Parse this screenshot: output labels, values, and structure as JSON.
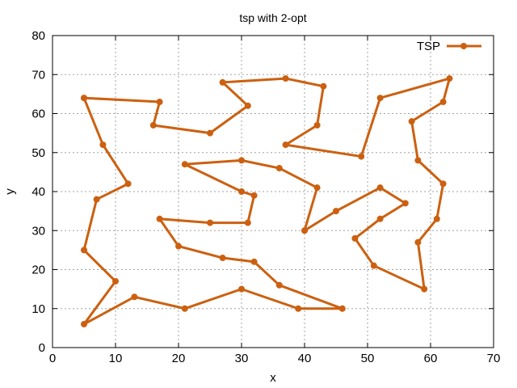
{
  "chart_data": {
    "type": "line",
    "title": "tsp with 2-opt",
    "xlabel": "x",
    "ylabel": "y",
    "xlim": [
      0,
      70
    ],
    "ylim": [
      0,
      80
    ],
    "xticks": [
      0,
      10,
      20,
      30,
      40,
      50,
      60,
      70
    ],
    "yticks": [
      0,
      10,
      20,
      30,
      40,
      50,
      60,
      70,
      80
    ],
    "grid": true,
    "legend_position": "top-right",
    "series": [
      {
        "name": "TSP",
        "color": "#cc6010",
        "marker": "circle",
        "x": [
          5,
          17,
          16,
          25,
          31,
          27,
          37,
          43,
          42,
          37,
          49,
          52,
          63,
          62,
          57,
          58,
          62,
          61,
          58,
          59,
          51,
          48,
          52,
          56,
          52,
          45,
          40,
          42,
          36,
          30,
          21,
          30,
          32,
          31,
          25,
          17,
          20,
          27,
          32,
          36,
          46,
          39,
          30,
          21,
          13,
          5,
          10,
          5,
          7,
          12,
          8,
          5
        ],
        "y": [
          64,
          63,
          57,
          55,
          62,
          68,
          69,
          67,
          57,
          52,
          49,
          64,
          69,
          63,
          58,
          48,
          42,
          33,
          27,
          15,
          21,
          28,
          33,
          37,
          41,
          35,
          30,
          41,
          46,
          48,
          47,
          40,
          39,
          32,
          32,
          33,
          26,
          23,
          22,
          16,
          10,
          10,
          15,
          10,
          13,
          6,
          17,
          25,
          38,
          42,
          52,
          64
        ]
      }
    ]
  }
}
